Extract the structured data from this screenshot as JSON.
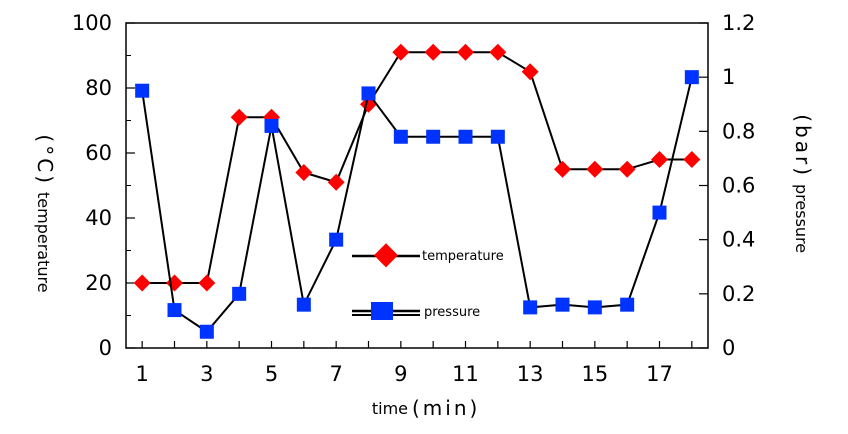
{
  "chart_data": {
    "type": "line",
    "title": "",
    "xlabel_main": "time",
    "xlabel_unit": "(min)",
    "ylabel_left_main": "temperature",
    "ylabel_left_unit": "(°C)",
    "ylabel_right_main": "pressure",
    "ylabel_right_unit": "(bar)",
    "x": [
      1,
      2,
      3,
      4,
      5,
      6,
      7,
      8,
      9,
      10,
      11,
      12,
      13,
      14,
      15,
      16,
      17,
      18
    ],
    "xlim": [
      0.5,
      18.5
    ],
    "x_ticks": [
      1,
      3,
      5,
      7,
      9,
      11,
      13,
      15,
      17
    ],
    "ylim_left": [
      0,
      100
    ],
    "y_ticks_left": [
      0,
      20,
      40,
      60,
      80,
      100
    ],
    "ylim_right": [
      0,
      1.2
    ],
    "y_ticks_right": [
      "0",
      "0.2",
      "0.4",
      "0.6",
      "0.8",
      "1",
      "1.2"
    ],
    "grid": false,
    "legend_position": "center",
    "series": [
      {
        "name": "temperature",
        "axis": "left",
        "marker": "diamond",
        "color": "#ff0000",
        "values": [
          20,
          20,
          20,
          71,
          71,
          54,
          51,
          75,
          91,
          91,
          91,
          91,
          85,
          55,
          55,
          55,
          58,
          58
        ]
      },
      {
        "name": "pressure",
        "axis": "right",
        "marker": "square",
        "color": "#0033ff",
        "values": [
          0.95,
          0.14,
          0.06,
          0.2,
          0.82,
          0.16,
          0.4,
          0.94,
          0.78,
          0.78,
          0.78,
          0.78,
          0.15,
          0.16,
          0.15,
          0.16,
          0.5,
          1.0
        ]
      }
    ]
  }
}
